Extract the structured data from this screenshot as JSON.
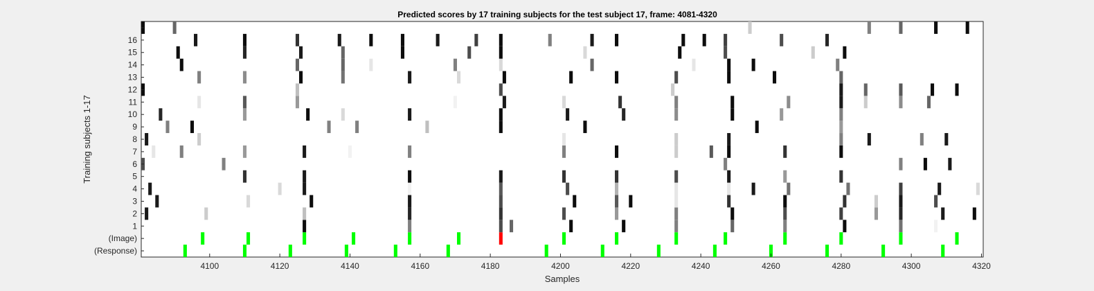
{
  "chart_data": {
    "type": "heatmap",
    "title": "Predicted scores by 17 training subjects for the test subject 17, frame: 4081-4320",
    "xlabel": "Samples",
    "ylabel": "Training subjects 1-17",
    "xlim": [
      4081,
      4320
    ],
    "x_ticks": [
      4100,
      4120,
      4140,
      4160,
      4180,
      4200,
      4220,
      4240,
      4260,
      4280,
      4300,
      4320
    ],
    "rows": [
      "(Response)",
      "(Image)",
      "1",
      "2",
      "3",
      "4",
      "5",
      "6",
      "7",
      "8",
      "9",
      "10",
      "11",
      "12",
      "13",
      "14",
      "15",
      "16",
      ""
    ],
    "response_markers": [
      {
        "x": 4093,
        "color": "green"
      },
      {
        "x": 4110,
        "color": "green"
      },
      {
        "x": 4123,
        "color": "green"
      },
      {
        "x": 4139,
        "color": "green"
      },
      {
        "x": 4153,
        "color": "green"
      },
      {
        "x": 4168,
        "color": "green"
      },
      {
        "x": 4196,
        "color": "green"
      },
      {
        "x": 4212,
        "color": "green"
      },
      {
        "x": 4228,
        "color": "green"
      },
      {
        "x": 4244,
        "color": "green"
      },
      {
        "x": 4260,
        "color": "green"
      },
      {
        "x": 4276,
        "color": "green"
      },
      {
        "x": 4292,
        "color": "green"
      },
      {
        "x": 4309,
        "color": "green"
      }
    ],
    "image_markers": [
      {
        "x": 4098,
        "color": "green"
      },
      {
        "x": 4111,
        "color": "green"
      },
      {
        "x": 4127,
        "color": "green"
      },
      {
        "x": 4141,
        "color": "green"
      },
      {
        "x": 4157,
        "color": "green"
      },
      {
        "x": 4171,
        "color": "green"
      },
      {
        "x": 4183,
        "color": "red"
      },
      {
        "x": 4201,
        "color": "green"
      },
      {
        "x": 4216,
        "color": "green"
      },
      {
        "x": 4233,
        "color": "green"
      },
      {
        "x": 4247,
        "color": "green"
      },
      {
        "x": 4264,
        "color": "green"
      },
      {
        "x": 4280,
        "color": "green"
      },
      {
        "x": 4297,
        "color": "green"
      },
      {
        "x": 4313,
        "color": "green"
      }
    ],
    "subject_scores": [
      {
        "subject": 1,
        "cells": [
          [
            4127,
            0.05
          ],
          [
            4157,
            0.5
          ],
          [
            4183,
            0.3
          ],
          [
            4186,
            0.4
          ],
          [
            4203,
            0.05
          ],
          [
            4218,
            0.05
          ],
          [
            4233,
            0.5
          ],
          [
            4249,
            0.4
          ],
          [
            4264,
            0.5
          ],
          [
            4281,
            0.05
          ],
          [
            4297,
            0.45
          ],
          [
            4307,
            0.95
          ]
        ]
      },
      {
        "subject": 2,
        "cells": [
          [
            4082,
            0.1
          ],
          [
            4099,
            0.8
          ],
          [
            4127,
            0.75
          ],
          [
            4157,
            0.15
          ],
          [
            4183,
            0.2
          ],
          [
            4201,
            0.3
          ],
          [
            4216,
            0.6
          ],
          [
            4233,
            0.5
          ],
          [
            4249,
            0.05
          ],
          [
            4264,
            0.3
          ],
          [
            4280,
            0.25
          ],
          [
            4290,
            0.6
          ],
          [
            4297,
            0.15
          ],
          [
            4309,
            0.1
          ],
          [
            4318,
            0.05
          ]
        ]
      },
      {
        "subject": 3,
        "cells": [
          [
            4085,
            0.1
          ],
          [
            4111,
            0.85
          ],
          [
            4129,
            0.05
          ],
          [
            4157,
            0.1
          ],
          [
            4183,
            0.3
          ],
          [
            4204,
            0.05
          ],
          [
            4216,
            0.35
          ],
          [
            4220,
            0.05
          ],
          [
            4233,
            0.9
          ],
          [
            4248,
            0.2
          ],
          [
            4264,
            0.05
          ],
          [
            4281,
            0.2
          ],
          [
            4290,
            0.8
          ],
          [
            4297,
            0.1
          ],
          [
            4307,
            0.3
          ]
        ]
      },
      {
        "subject": 4,
        "cells": [
          [
            4083,
            0.1
          ],
          [
            4120,
            0.85
          ],
          [
            4127,
            0.1
          ],
          [
            4157,
            0.95
          ],
          [
            4183,
            0.35
          ],
          [
            4202,
            0.3
          ],
          [
            4216,
            0.7
          ],
          [
            4233,
            0.9
          ],
          [
            4248,
            0.9
          ],
          [
            4255,
            0.1
          ],
          [
            4265,
            0.45
          ],
          [
            4282,
            0.45
          ],
          [
            4297,
            0.25
          ],
          [
            4308,
            0.1
          ],
          [
            4319,
            0.85
          ]
        ]
      },
      {
        "subject": 5,
        "cells": [
          [
            4110,
            0.2
          ],
          [
            4127,
            0.1
          ],
          [
            4157,
            0.05
          ],
          [
            4183,
            0.1
          ],
          [
            4201,
            0.2
          ],
          [
            4216,
            0.2
          ],
          [
            4233,
            0.3
          ],
          [
            4248,
            0.1
          ],
          [
            4264,
            0.6
          ],
          [
            4280,
            0.2
          ]
        ]
      },
      {
        "subject": 6,
        "cells": [
          [
            4081,
            0.3
          ],
          [
            4104,
            0.5
          ],
          [
            4247,
            0.5
          ],
          [
            4297,
            0.5
          ],
          [
            4304,
            0.05
          ],
          [
            4311,
            0.1
          ]
        ]
      },
      {
        "subject": 7,
        "cells": [
          [
            4084,
            0.9
          ],
          [
            4092,
            0.5
          ],
          [
            4110,
            0.6
          ],
          [
            4127,
            0.1
          ],
          [
            4140,
            0.95
          ],
          [
            4157,
            0.5
          ],
          [
            4201,
            0.5
          ],
          [
            4216,
            0.05
          ],
          [
            4233,
            0.8
          ],
          [
            4243,
            0.35
          ],
          [
            4248,
            0.05
          ],
          [
            4264,
            0.2
          ],
          [
            4280,
            0.05
          ]
        ]
      },
      {
        "subject": 8,
        "cells": [
          [
            4082,
            0.1
          ],
          [
            4097,
            0.8
          ],
          [
            4201,
            0.9
          ],
          [
            4233,
            0.8
          ],
          [
            4248,
            0.1
          ],
          [
            4280,
            0.5
          ],
          [
            4288,
            0.1
          ],
          [
            4303,
            0.5
          ],
          [
            4310,
            0.1
          ]
        ]
      },
      {
        "subject": 9,
        "cells": [
          [
            4088,
            0.5
          ],
          [
            4095,
            0.05
          ],
          [
            4134,
            0.5
          ],
          [
            4142,
            0.5
          ],
          [
            4162,
            0.75
          ],
          [
            4183,
            0.05
          ],
          [
            4207,
            0.05
          ],
          [
            4256,
            0.05
          ],
          [
            4280,
            0.6
          ]
        ]
      },
      {
        "subject": 10,
        "cells": [
          [
            4086,
            0.15
          ],
          [
            4110,
            0.6
          ],
          [
            4128,
            0.05
          ],
          [
            4138,
            0.85
          ],
          [
            4157,
            0.1
          ],
          [
            4183,
            0.05
          ],
          [
            4202,
            0.1
          ],
          [
            4218,
            0.15
          ],
          [
            4233,
            0.55
          ],
          [
            4249,
            0.05
          ],
          [
            4263,
            0.6
          ],
          [
            4280,
            0.5
          ]
        ]
      },
      {
        "subject": 11,
        "cells": [
          [
            4097,
            0.9
          ],
          [
            4110,
            0.35
          ],
          [
            4125,
            0.6
          ],
          [
            4170,
            0.95
          ],
          [
            4184,
            0.1
          ],
          [
            4201,
            0.85
          ],
          [
            4217,
            0.2
          ],
          [
            4233,
            0.5
          ],
          [
            4249,
            0.05
          ],
          [
            4265,
            0.55
          ],
          [
            4280,
            0.1
          ],
          [
            4287,
            0.8
          ],
          [
            4297,
            0.55
          ],
          [
            4305,
            0.4
          ]
        ]
      },
      {
        "subject": 12,
        "cells": [
          [
            4081,
            0.05
          ],
          [
            4125,
            0.75
          ],
          [
            4183,
            0.3
          ],
          [
            4232,
            0.8
          ],
          [
            4280,
            0.1
          ],
          [
            4287,
            0.4
          ],
          [
            4297,
            0.35
          ],
          [
            4306,
            0.05
          ],
          [
            4313,
            0.05
          ]
        ]
      },
      {
        "subject": 13,
        "cells": [
          [
            4097,
            0.5
          ],
          [
            4110,
            0.55
          ],
          [
            4126,
            0.05
          ],
          [
            4138,
            0.45
          ],
          [
            4157,
            0.1
          ],
          [
            4171,
            0.85
          ],
          [
            4184,
            0.05
          ],
          [
            4203,
            0.05
          ],
          [
            4216,
            0.05
          ],
          [
            4233,
            0.3
          ],
          [
            4248,
            0.05
          ],
          [
            4261,
            0.05
          ],
          [
            4280,
            0.4
          ]
        ]
      },
      {
        "subject": 14,
        "cells": [
          [
            4092,
            0.05
          ],
          [
            4125,
            0.4
          ],
          [
            4138,
            0.4
          ],
          [
            4146,
            0.9
          ],
          [
            4170,
            0.5
          ],
          [
            4183,
            0.85
          ],
          [
            4209,
            0.4
          ],
          [
            4238,
            0.9
          ],
          [
            4248,
            0.05
          ],
          [
            4255,
            0.05
          ],
          [
            4279,
            0.5
          ]
        ]
      },
      {
        "subject": 15,
        "cells": [
          [
            4091,
            0.05
          ],
          [
            4110,
            0.15
          ],
          [
            4126,
            0.1
          ],
          [
            4138,
            0.4
          ],
          [
            4155,
            0.05
          ],
          [
            4174,
            0.3
          ],
          [
            4183,
            0.05
          ],
          [
            4207,
            0.85
          ],
          [
            4234,
            0.05
          ],
          [
            4247,
            0.3
          ],
          [
            4272,
            0.8
          ],
          [
            4281,
            0.05
          ]
        ]
      },
      {
        "subject": 16,
        "cells": [
          [
            4096,
            0.1
          ],
          [
            4110,
            0.05
          ],
          [
            4125,
            0.2
          ],
          [
            4137,
            0.1
          ],
          [
            4146,
            0.05
          ],
          [
            4155,
            0.05
          ],
          [
            4165,
            0.1
          ],
          [
            4176,
            0.25
          ],
          [
            4183,
            0.05
          ],
          [
            4197,
            0.5
          ],
          [
            4209,
            0.1
          ],
          [
            4216,
            0.05
          ],
          [
            4235,
            0.05
          ],
          [
            4241,
            0.05
          ],
          [
            4247,
            0.25
          ],
          [
            4263,
            0.3
          ],
          [
            4276,
            0.15
          ]
        ]
      },
      {
        "subject": 17,
        "cells": [
          [
            4081,
            0.05
          ],
          [
            4090,
            0.4
          ],
          [
            4254,
            0.8
          ],
          [
            4288,
            0.5
          ],
          [
            4297,
            0.4
          ],
          [
            4307,
            0.05
          ],
          [
            4316,
            0.05
          ]
        ]
      }
    ]
  }
}
